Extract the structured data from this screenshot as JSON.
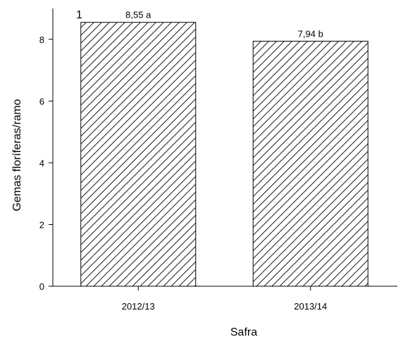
{
  "chart_data": {
    "type": "bar",
    "panel_label": "1",
    "categories": [
      "2012/13",
      "2013/14"
    ],
    "values": [
      8.55,
      7.94
    ],
    "data_labels": [
      "8,55 a",
      "7,94 b"
    ],
    "xlabel": "Safra",
    "ylabel": "Gemas floríferas/ramo",
    "ylim": [
      0,
      9
    ],
    "yticks": [
      0,
      2,
      4,
      6,
      8
    ],
    "grid": false,
    "bar_fill": "hatched",
    "colors": {
      "bar_stroke": "#000000",
      "hatch": "#000000",
      "axis": "#000000"
    }
  }
}
